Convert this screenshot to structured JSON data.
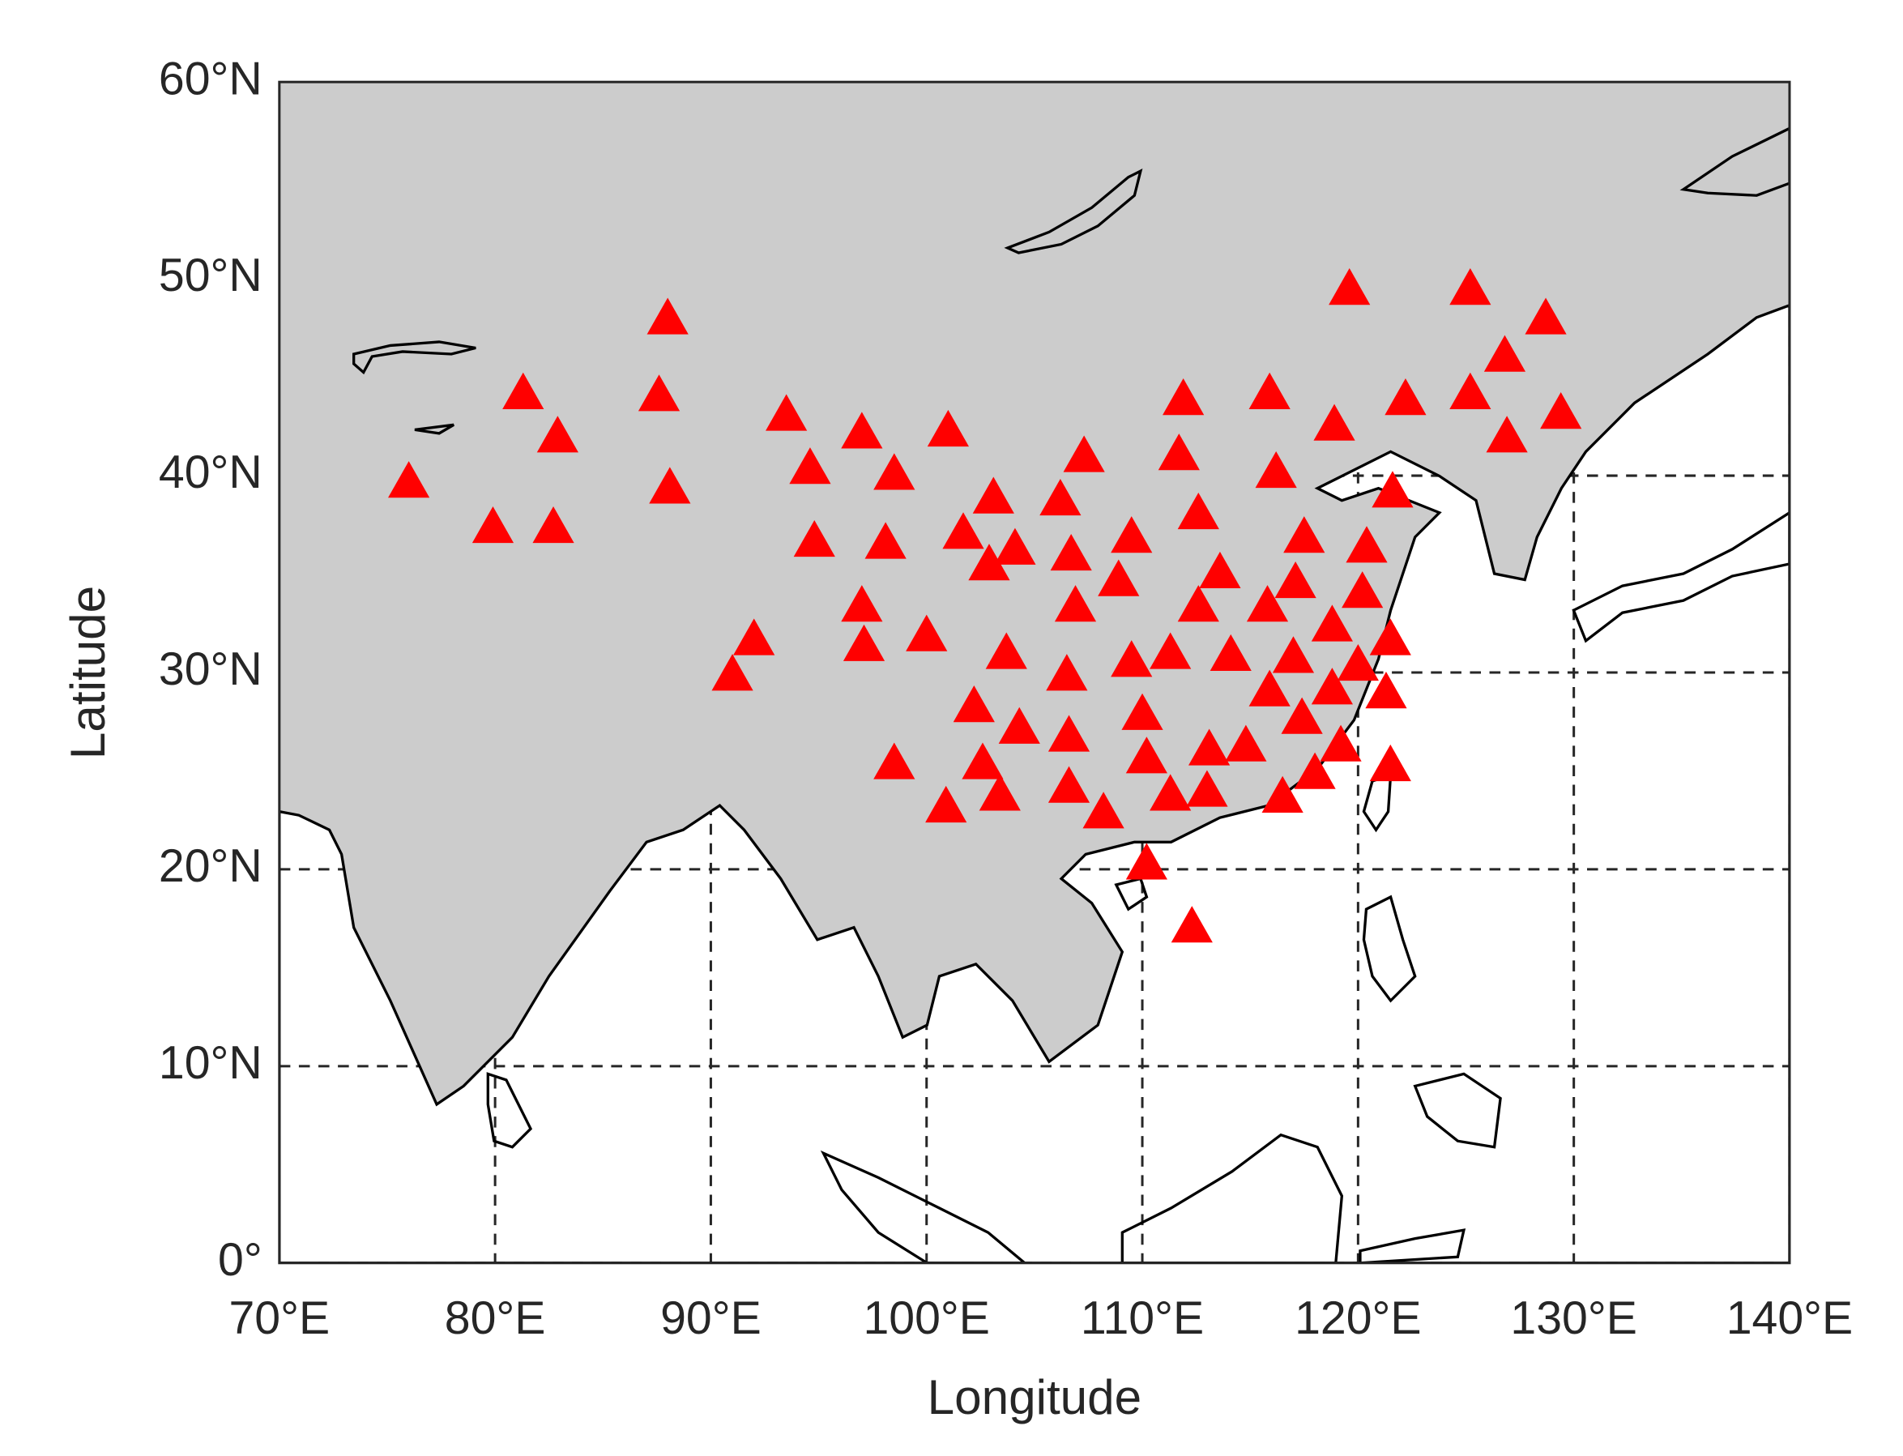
{
  "chart_data": {
    "type": "scatter",
    "xlabel": "Longitude",
    "ylabel": "Latitude",
    "xlim": [
      70,
      140
    ],
    "ylim": [
      0,
      60
    ],
    "xticks": [
      {
        "value": 70,
        "label": "70°E"
      },
      {
        "value": 80,
        "label": "80°E"
      },
      {
        "value": 90,
        "label": "90°E"
      },
      {
        "value": 100,
        "label": "100°E"
      },
      {
        "value": 110,
        "label": "110°E"
      },
      {
        "value": 120,
        "label": "120°E"
      },
      {
        "value": 130,
        "label": "130°E"
      },
      {
        "value": 140,
        "label": "140°E"
      }
    ],
    "yticks": [
      {
        "value": 0,
        "label": "0°"
      },
      {
        "value": 10,
        "label": "10°N"
      },
      {
        "value": 20,
        "label": "20°N"
      },
      {
        "value": 30,
        "label": "30°N"
      },
      {
        "value": 40,
        "label": "40°N"
      },
      {
        "value": 50,
        "label": "50°N"
      },
      {
        "value": 60,
        "label": "60°N"
      }
    ],
    "grid": true,
    "color": "#ff0000",
    "marker": "triangle",
    "x": [
      76.0,
      79.9,
      82.7,
      81.3,
      82.9,
      88.0,
      87.6,
      88.1,
      91.0,
      92.0,
      93.5,
      94.6,
      94.8,
      97.0,
      98.5,
      98.1,
      97.0,
      97.1,
      100.0,
      98.5,
      101.0,
      101.7,
      103.1,
      102.9,
      104.1,
      103.7,
      102.2,
      102.6,
      103.4,
      104.3,
      100.9,
      106.2,
      107.3,
      106.7,
      106.9,
      106.5,
      106.6,
      106.6,
      108.2,
      109.5,
      108.9,
      109.5,
      110.0,
      110.2,
      110.2,
      112.3,
      111.9,
      111.7,
      112.6,
      111.3,
      111.3,
      112.6,
      113.0,
      113.1,
      113.6,
      114.1,
      114.8,
      115.9,
      116.2,
      115.8,
      115.9,
      116.5,
      117.1,
      117.0,
      117.5,
      117.4,
      118.0,
      118.9,
      118.8,
      118.8,
      119.2,
      119.6,
      120.0,
      120.2,
      120.4,
      121.6,
      121.5,
      121.3,
      121.5,
      122.2,
      125.2,
      125.2,
      126.8,
      126.9,
      128.7,
      129.4
    ],
    "values": [
      39.5,
      37.2,
      37.2,
      44.0,
      41.8,
      47.8,
      43.9,
      39.2,
      29.7,
      31.5,
      42.9,
      40.2,
      36.5,
      42.0,
      39.9,
      36.4,
      33.2,
      31.2,
      31.7,
      25.2,
      42.1,
      36.9,
      38.7,
      35.3,
      36.1,
      30.8,
      28.1,
      25.2,
      23.6,
      27.0,
      23.0,
      38.6,
      40.8,
      35.8,
      33.2,
      29.7,
      26.6,
      24.0,
      22.7,
      36.7,
      34.5,
      30.4,
      27.7,
      25.5,
      20.1,
      16.9,
      43.7,
      40.9,
      37.9,
      30.8,
      23.6,
      33.2,
      23.8,
      25.9,
      34.9,
      30.7,
      26.1,
      44.0,
      40.0,
      33.2,
      28.9,
      23.5,
      34.4,
      30.6,
      36.7,
      27.5,
      24.7,
      42.4,
      32.2,
      29.0,
      26.1,
      49.3,
      30.2,
      33.9,
      36.2,
      39.0,
      31.5,
      28.8,
      25.1,
      43.7,
      49.3,
      44.0,
      45.9,
      41.8,
      47.8,
      43.0
    ]
  }
}
